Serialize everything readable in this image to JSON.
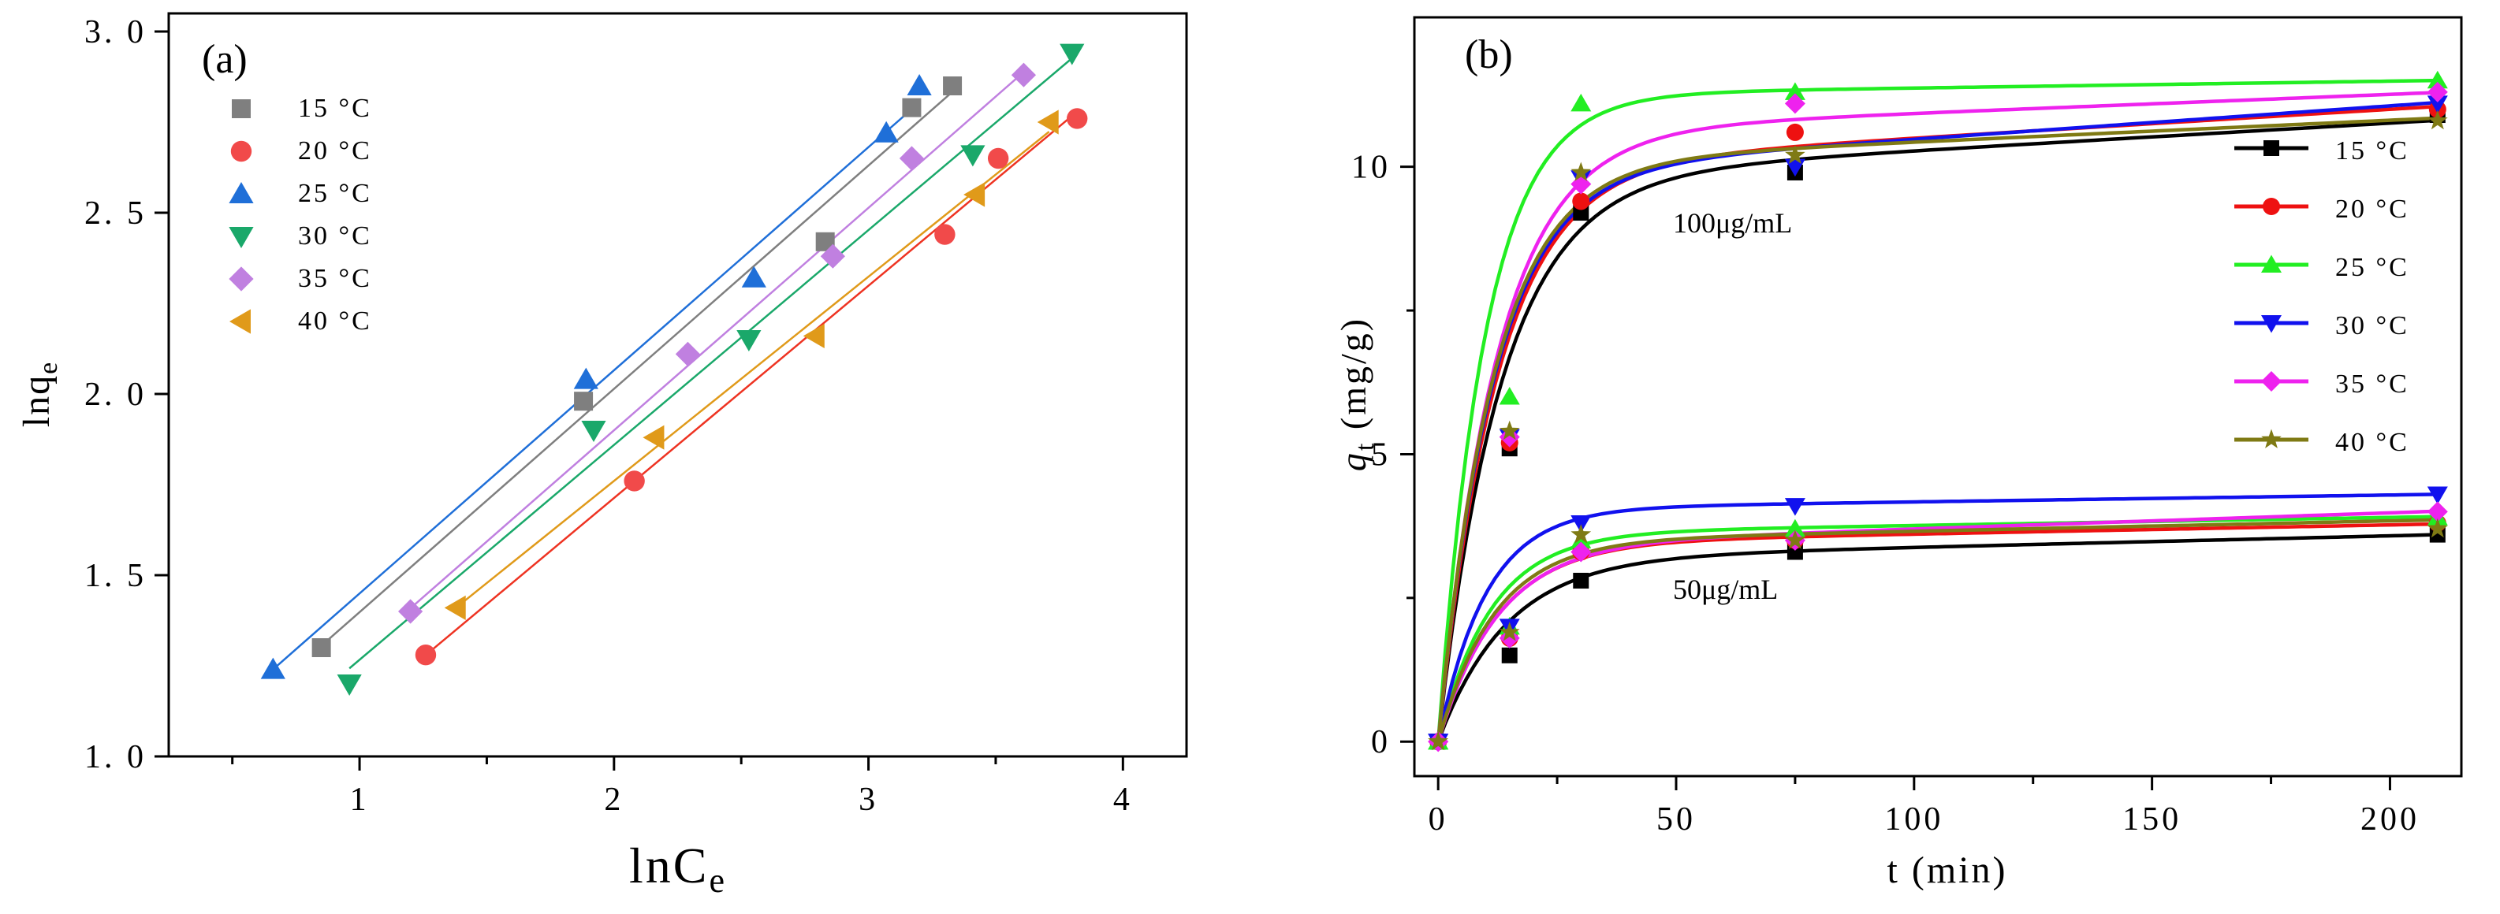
{
  "chart_data": [
    {
      "type": "scatter",
      "panel_label": "(a)",
      "xlabel_main": "lnC",
      "xlabel_sub": "e",
      "ylabel_main": "lnq",
      "ylabel_sub": "e",
      "xlim": [
        0.25,
        4.25
      ],
      "ylim": [
        1.0,
        3.05
      ],
      "xticks": [
        1,
        2,
        3,
        4
      ],
      "xtick_labels": [
        "1",
        "2",
        "3",
        "4"
      ],
      "yticks": [
        1.0,
        1.5,
        2.0,
        2.5,
        3.0
      ],
      "ytick_labels": [
        "1. 0",
        "1. 5",
        "2. 0",
        "2. 5",
        "3. 0"
      ],
      "legend_position": "top-left",
      "series": [
        {
          "name": "15 °C",
          "temp": "15",
          "unit": "°C",
          "marker": "square",
          "color": "#7f7f7f",
          "line_color": "#7f7f7f",
          "x": [
            0.85,
            1.88,
            2.83,
            3.17,
            3.33
          ],
          "y": [
            1.3,
            1.98,
            2.42,
            2.79,
            2.85
          ]
        },
        {
          "name": "20 °C",
          "temp": "20",
          "unit": "°C",
          "marker": "circle",
          "color": "#f14a4a",
          "line_color": "#ee3322",
          "x": [
            1.26,
            2.08,
            3.3,
            3.51,
            3.82
          ],
          "y": [
            1.28,
            1.76,
            2.44,
            2.65,
            2.76
          ]
        },
        {
          "name": "25 °C",
          "temp": "25",
          "unit": "°C",
          "marker": "triangle-up",
          "color": "#1f6fd8",
          "line_color": "#1f6fd8",
          "x": [
            0.66,
            1.89,
            2.55,
            3.07,
            3.2
          ],
          "y": [
            1.24,
            2.04,
            2.32,
            2.72,
            2.85
          ]
        },
        {
          "name": "30 °C",
          "temp": "30",
          "unit": "°C",
          "marker": "triangle-down",
          "color": "#1aa86a",
          "line_color": "#1aa86a",
          "x": [
            0.96,
            1.92,
            2.53,
            3.41,
            3.8
          ],
          "y": [
            1.2,
            1.9,
            2.15,
            2.66,
            2.94
          ]
        },
        {
          "name": "35 °C",
          "temp": "35",
          "unit": "°C",
          "marker": "diamond",
          "color": "#c080e0",
          "line_color": "#c080e0",
          "x": [
            1.2,
            2.29,
            2.86,
            3.17,
            3.61
          ],
          "y": [
            1.4,
            2.11,
            2.38,
            2.65,
            2.88
          ]
        },
        {
          "name": "40 °C",
          "temp": "40",
          "unit": "°C",
          "marker": "triangle-left",
          "color": "#e09a1a",
          "line_color": "#e09a1a",
          "x": [
            1.38,
            2.16,
            2.79,
            3.42,
            3.71
          ],
          "y": [
            1.41,
            1.88,
            2.16,
            2.55,
            2.75
          ]
        }
      ]
    },
    {
      "type": "line",
      "panel_label": "(b)",
      "xlabel": "t (min)",
      "ylabel_main": "q",
      "ylabel_sub": "t",
      "ylabel_rest": " (mg/g)",
      "xlim": [
        -5,
        215
      ],
      "ylim": [
        -0.6,
        12.6
      ],
      "xticks": [
        0,
        50,
        100,
        150,
        200
      ],
      "xtick_labels": [
        "0",
        "50",
        "100",
        "150",
        "200"
      ],
      "yticks": [
        0,
        5,
        10
      ],
      "ytick_labels": [
        "0",
        "5",
        "10"
      ],
      "legend_position": "right",
      "annotations": [
        "100μg/mL",
        "50μg/mL"
      ],
      "t": [
        0,
        15,
        30,
        75,
        210
      ],
      "series": [
        {
          "name": "15 °C",
          "temp": "15",
          "unit": "°C",
          "marker": "square",
          "color": "#000000",
          "y100": [
            0,
            5.1,
            9.2,
            9.9,
            10.9
          ],
          "y50": [
            0,
            1.5,
            2.8,
            3.3,
            3.6
          ],
          "fit100": {
            "qmax": 9.8,
            "k": 0.075,
            "c": 0.0048
          },
          "fit50": {
            "qmax": 3.18,
            "k": 0.07,
            "c": 0.002
          }
        },
        {
          "name": "20 °C",
          "temp": "20",
          "unit": "°C",
          "marker": "circle",
          "color": "#ee1111",
          "y100": [
            0,
            5.2,
            9.4,
            10.6,
            11.0
          ],
          "y50": [
            0,
            1.8,
            3.3,
            3.5,
            3.8
          ],
          "fit100": {
            "qmax": 10.0,
            "k": 0.08,
            "c": 0.005
          },
          "fit50": {
            "qmax": 3.45,
            "k": 0.08,
            "c": 0.0016
          }
        },
        {
          "name": "25 °C",
          "temp": "25",
          "unit": "°C",
          "marker": "triangle-up",
          "color": "#22ee22",
          "y100": [
            0,
            6.0,
            11.1,
            11.3,
            11.5
          ],
          "y50": [
            0,
            2.0,
            3.5,
            3.7,
            3.9
          ],
          "fit100": {
            "qmax": 11.25,
            "k": 0.1,
            "c": 0.0012
          },
          "fit50": {
            "qmax": 3.62,
            "k": 0.09,
            "c": 0.0014
          }
        },
        {
          "name": "30 °C",
          "temp": "30",
          "unit": "°C",
          "marker": "triangle-down",
          "color": "#1111ee",
          "y100": [
            0,
            5.3,
            9.8,
            10.0,
            11.1
          ],
          "y50": [
            0,
            2.0,
            3.8,
            4.1,
            4.3
          ],
          "fit100": {
            "qmax": 9.9,
            "k": 0.085,
            "c": 0.0058
          },
          "fit50": {
            "qmax": 4.05,
            "k": 0.1,
            "c": 0.0012
          }
        },
        {
          "name": "35 °C",
          "temp": "35",
          "unit": "°C",
          "marker": "diamond",
          "color": "#ee22ee",
          "y100": [
            0,
            5.3,
            9.7,
            11.1,
            11.3
          ],
          "y50": [
            0,
            1.8,
            3.3,
            3.5,
            4.0
          ],
          "fit100": {
            "qmax": 10.6,
            "k": 0.08,
            "c": 0.0033
          },
          "fit50": {
            "qmax": 3.42,
            "k": 0.08,
            "c": 0.0028
          }
        },
        {
          "name": "40 °C",
          "temp": "40",
          "unit": "°C",
          "marker": "star",
          "color": "#7f7a14",
          "y100": [
            0,
            5.4,
            9.9,
            10.2,
            10.8
          ],
          "y50": [
            0,
            1.9,
            3.6,
            3.5,
            3.7
          ],
          "fit100": {
            "qmax": 10.05,
            "k": 0.085,
            "c": 0.0038
          },
          "fit50": {
            "qmax": 3.48,
            "k": 0.085,
            "c": 0.0018
          }
        }
      ]
    }
  ]
}
